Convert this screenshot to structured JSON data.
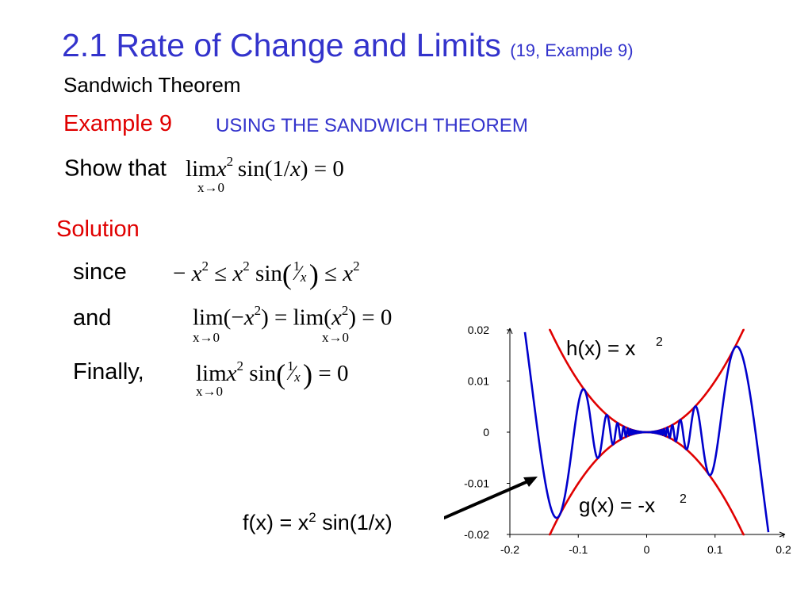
{
  "header": {
    "title": "2.1 Rate of Change and Limits",
    "title_ref": "(19, Example 9)",
    "subtitle": "Sandwich Theorem"
  },
  "example": {
    "label": "Example 9",
    "heading": "USING THE SANDWICH THEOREM",
    "prompt": "Show that",
    "expr_main": "sin(1/",
    "expr_tail": ") = 0",
    "lim": "lim",
    "x": "x",
    "exp2": "2",
    "lim_sub": "x→0"
  },
  "solution": {
    "label": "Solution",
    "since_label": "since",
    "and_label": "and",
    "finally_label": "Finally,",
    "minus": "−",
    "leq": "≤",
    "sin": "sin",
    "one": "1",
    "slash": "⁄",
    "lparen": "(",
    "rparen": ")",
    "lim_open": "lim(",
    "close_eq": ") = ",
    "eq_zero": " = 0",
    "close_eq_zero": ") = 0"
  },
  "graph_label": {
    "fx_text": "f(x) = x",
    "fx_exp": "2",
    "fx_tail": " sin(1/x)"
  },
  "chart_data": {
    "type": "line",
    "title": "",
    "xlabel": "",
    "ylabel": "",
    "xlim": [
      -0.2,
      0.2
    ],
    "ylim": [
      -0.02,
      0.02
    ],
    "x_ticks": [
      "-0.2",
      "-0.1",
      "0",
      "0.1",
      "0.2"
    ],
    "y_ticks": [
      "0.02",
      "0.01",
      "0",
      "-0.01",
      "-0.02"
    ],
    "grid": false,
    "series": [
      {
        "name": "h(x) = x²",
        "label_text": "h(x) = x",
        "label_exp": "2",
        "formula": "x^2",
        "color": "#e00000",
        "x_range": [
          -0.143,
          0.143
        ]
      },
      {
        "name": "g(x) = -x²",
        "label_text": "g(x) = -x",
        "label_exp": "2",
        "formula": "-x^2",
        "color": "#e00000",
        "x_range": [
          -0.143,
          0.143
        ]
      },
      {
        "formula": "x^2 sin(1/x)",
        "color": "#0000cc",
        "x_range": [
          -0.178,
          0.178
        ]
      }
    ],
    "arrow_target_color": "#000000"
  }
}
